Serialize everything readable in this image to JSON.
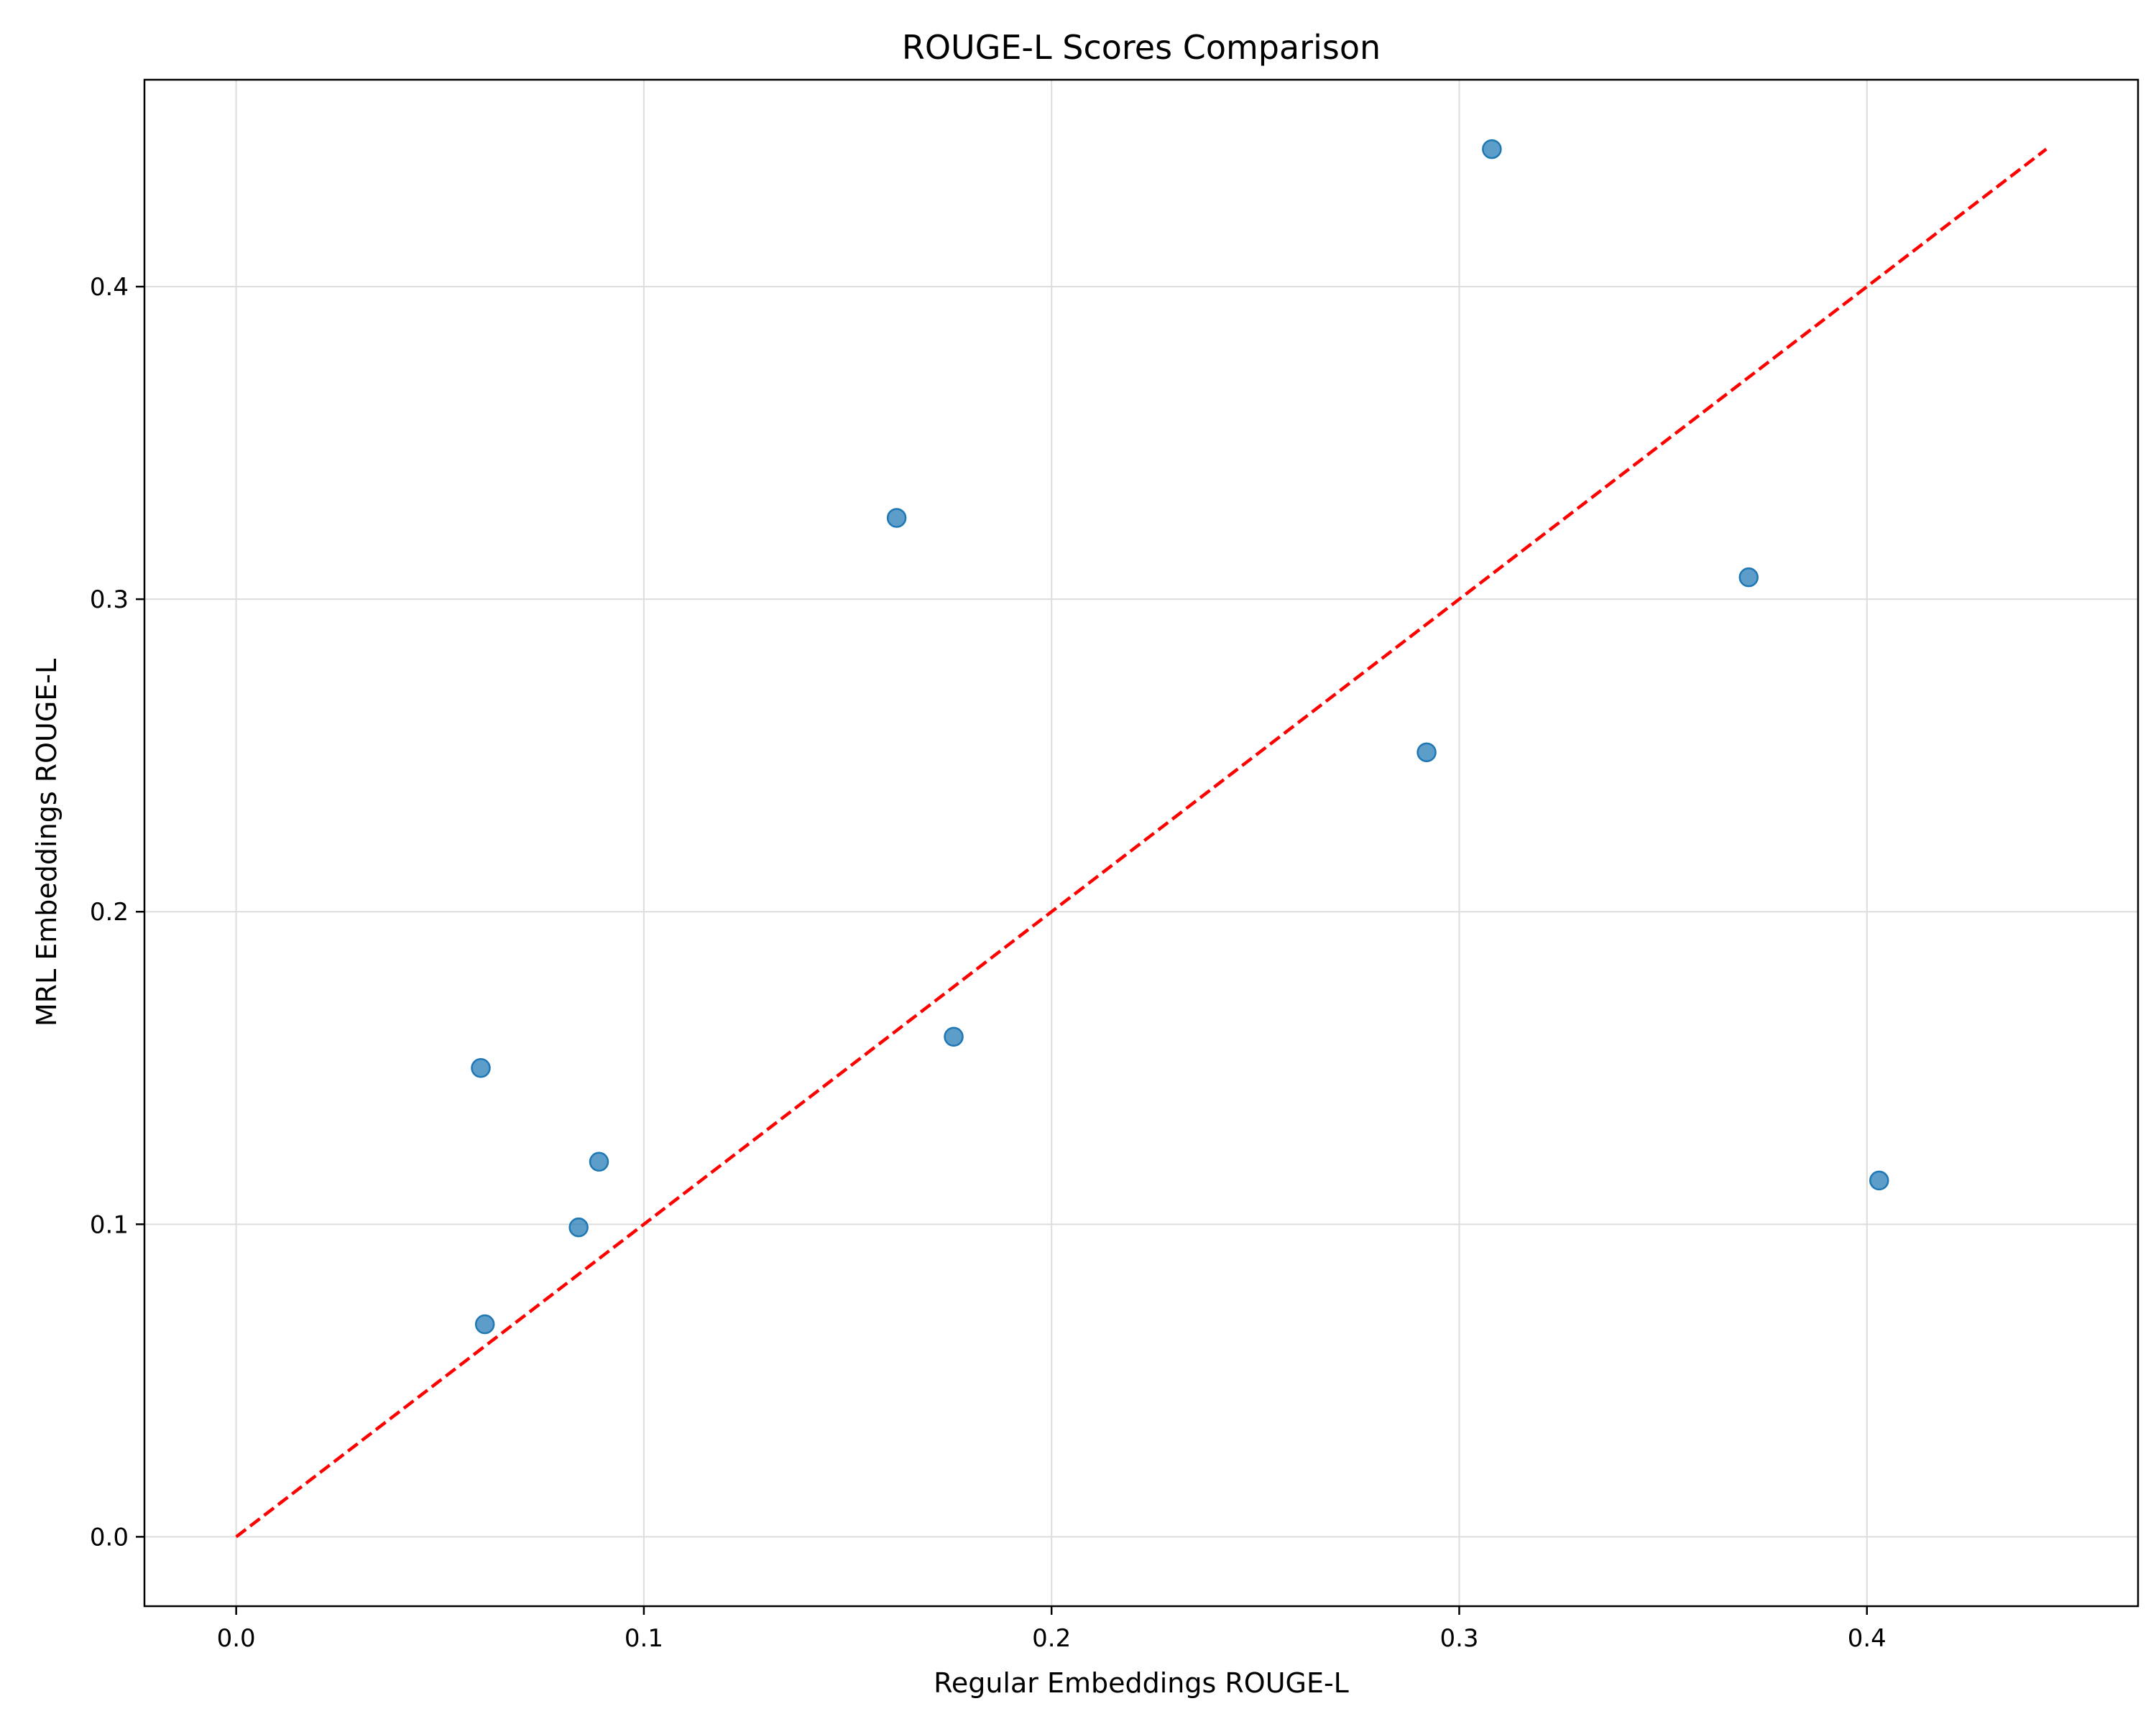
{
  "chart_data": {
    "type": "scatter",
    "title": "ROUGE-L Scores Comparison",
    "xlabel": "Regular Embeddings ROUGE-L",
    "ylabel": "MRL Embeddings ROUGE-L",
    "xlim": [
      -0.0225,
      0.4665
    ],
    "ylim": [
      -0.0222,
      0.4662
    ],
    "xticks": [
      "0.0",
      "0.1",
      "0.2",
      "0.3",
      "0.4"
    ],
    "yticks": [
      "0.0",
      "0.1",
      "0.2",
      "0.3",
      "0.4"
    ],
    "grid": true,
    "points": [
      {
        "x": 0.06,
        "y": 0.15
      },
      {
        "x": 0.061,
        "y": 0.068
      },
      {
        "x": 0.084,
        "y": 0.099
      },
      {
        "x": 0.089,
        "y": 0.12
      },
      {
        "x": 0.162,
        "y": 0.326
      },
      {
        "x": 0.176,
        "y": 0.16
      },
      {
        "x": 0.292,
        "y": 0.251
      },
      {
        "x": 0.308,
        "y": 0.444
      },
      {
        "x": 0.371,
        "y": 0.307
      },
      {
        "x": 0.403,
        "y": 0.114
      }
    ],
    "reference_line": {
      "x": [
        0,
        0.444
      ],
      "y": [
        0,
        0.444
      ],
      "style": "dashed"
    },
    "colors": {
      "points": "#1f77b4",
      "reference_line": "#ff0000",
      "grid": "#dddddd"
    }
  }
}
